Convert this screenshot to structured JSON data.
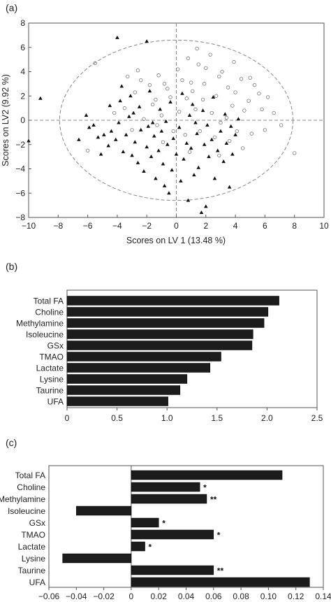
{
  "chart_data": [
    {
      "panel": "(a)",
      "type": "scatter",
      "xlabel": "Scores on LV 1 (13.48 %)",
      "ylabel": "Scores on LV2 (9.92 %)",
      "xlim": [
        -10,
        10
      ],
      "ylim": [
        -8,
        8
      ],
      "xticks": [
        -10,
        -8,
        -6,
        -4,
        -2,
        0,
        2,
        4,
        6,
        8,
        10
      ],
      "yticks": [
        8,
        6,
        4,
        2,
        0,
        -2,
        -4,
        -6,
        -8
      ],
      "ellipse": {
        "center": [
          0,
          0
        ],
        "rx": 7.9,
        "ry": 6.6,
        "style": "dashed"
      },
      "reference_lines": {
        "x": 0,
        "y": 0,
        "style": "dashed"
      },
      "series": [
        {
          "marker": "triangle-filled",
          "points": [
            [
              -9.2,
              1.8
            ],
            [
              -10,
              -1.7
            ],
            [
              -4.0,
              6.8
            ],
            [
              -3.7,
              2.8
            ],
            [
              -2.0,
              6.5
            ],
            [
              -6.1,
              0.4
            ],
            [
              -5.9,
              -0.6
            ],
            [
              -5.6,
              -0.4
            ],
            [
              -5.3,
              -1.4
            ],
            [
              -4.9,
              -1.2
            ],
            [
              -4.6,
              -2.1
            ],
            [
              -4.4,
              -0.9
            ],
            [
              -4.1,
              -1.6
            ],
            [
              -3.9,
              -0.2
            ],
            [
              -3.6,
              -2.6
            ],
            [
              -3.4,
              -1.2
            ],
            [
              -3.2,
              0.3
            ],
            [
              -3.0,
              -2.9
            ],
            [
              -2.8,
              -1.8
            ],
            [
              -2.6,
              -3.5
            ],
            [
              -2.4,
              -0.8
            ],
            [
              -2.2,
              -4.2
            ],
            [
              -2.0,
              -2.2
            ],
            [
              -1.9,
              -0.5
            ],
            [
              -1.7,
              -3.0
            ],
            [
              -1.5,
              -1.3
            ],
            [
              -1.4,
              -4.8
            ],
            [
              -1.2,
              -2.5
            ],
            [
              -1.0,
              -0.9
            ],
            [
              -0.9,
              -3.6
            ],
            [
              -0.8,
              -5.4
            ],
            [
              -0.6,
              -2.0
            ],
            [
              -0.5,
              -6.0
            ],
            [
              -0.3,
              -4.1
            ],
            [
              -0.2,
              -1.5
            ],
            [
              0.0,
              -2.8
            ],
            [
              0.2,
              -0.6
            ],
            [
              0.3,
              -5.0
            ],
            [
              0.5,
              -3.2
            ],
            [
              0.7,
              -1.9
            ],
            [
              0.8,
              -6.6
            ],
            [
              1.0,
              -2.3
            ],
            [
              1.2,
              -4.5
            ],
            [
              1.4,
              -1.1
            ],
            [
              1.5,
              -3.9
            ],
            [
              1.7,
              -7.6
            ],
            [
              1.9,
              -2.0
            ],
            [
              2.0,
              -7.1
            ],
            [
              2.2,
              -3.0
            ],
            [
              2.4,
              -1.6
            ],
            [
              2.6,
              -4.8
            ],
            [
              2.8,
              -2.5
            ],
            [
              3.0,
              -0.9
            ],
            [
              3.2,
              -3.4
            ],
            [
              3.4,
              -1.9
            ],
            [
              3.6,
              -5.5
            ],
            [
              3.8,
              -2.8
            ],
            [
              4.0,
              -1.2
            ],
            [
              -4.5,
              1.2
            ],
            [
              -3.8,
              1.6
            ],
            [
              -3.1,
              2.0
            ],
            [
              -2.5,
              1.1
            ],
            [
              -1.8,
              2.4
            ],
            [
              -1.1,
              0.9
            ],
            [
              -0.4,
              1.5
            ],
            [
              0.4,
              2.2
            ],
            [
              1.1,
              1.3
            ],
            [
              1.8,
              0.8
            ],
            [
              2.5,
              1.9
            ],
            [
              3.3,
              0.5
            ],
            [
              4.2,
              0.1
            ],
            [
              -2.9,
              0.6
            ],
            [
              -1.6,
              -0.2
            ],
            [
              0.9,
              0.4
            ],
            [
              2.1,
              -0.4
            ],
            [
              3.7,
              -0.5
            ],
            [
              -6.6,
              -1.6
            ],
            [
              -5.1,
              -2.8
            ],
            [
              -0.7,
              -0.1
            ],
            [
              1.3,
              -0.2
            ]
          ]
        },
        {
          "marker": "circle-open",
          "points": [
            [
              -5.5,
              4.7
            ],
            [
              -6.0,
              -2.5
            ],
            [
              -3.3,
              3.6
            ],
            [
              -2.6,
              4.1
            ],
            [
              -1.8,
              2.9
            ],
            [
              -1.2,
              3.7
            ],
            [
              -0.6,
              2.6
            ],
            [
              0.1,
              4.2
            ],
            [
              0.4,
              3.3
            ],
            [
              0.8,
              5.1
            ],
            [
              1.1,
              2.4
            ],
            [
              1.5,
              4.6
            ],
            [
              1.9,
              3.0
            ],
            [
              2.3,
              5.4
            ],
            [
              2.7,
              2.0
            ],
            [
              3.1,
              4.0
            ],
            [
              3.5,
              2.7
            ],
            [
              3.9,
              4.8
            ],
            [
              4.4,
              3.4
            ],
            [
              4.9,
              1.6
            ],
            [
              5.3,
              2.9
            ],
            [
              5.8,
              0.9
            ],
            [
              6.2,
              1.9
            ],
            [
              6.6,
              0.6
            ],
            [
              7.1,
              -0.4
            ],
            [
              8.0,
              -2.7
            ],
            [
              4.1,
              -0.9
            ],
            [
              3.6,
              -1.7
            ],
            [
              3.0,
              -0.2
            ],
            [
              2.4,
              0.6
            ],
            [
              1.8,
              1.7
            ],
            [
              1.3,
              0.9
            ],
            [
              0.7,
              1.8
            ],
            [
              0.2,
              0.7
            ],
            [
              -0.4,
              1.9
            ],
            [
              -1.0,
              0.4
            ],
            [
              -1.6,
              1.3
            ],
            [
              -2.2,
              0.1
            ],
            [
              -2.8,
              2.3
            ],
            [
              -3.5,
              1.0
            ],
            [
              -4.2,
              0.6
            ],
            [
              -1.3,
              -0.4
            ],
            [
              -0.2,
              -0.9
            ],
            [
              0.6,
              -1.2
            ],
            [
              1.6,
              -0.9
            ],
            [
              2.6,
              -1.4
            ],
            [
              4.5,
              -2.3
            ],
            [
              5.1,
              -1.1
            ],
            [
              5.6,
              2.2
            ],
            [
              4.6,
              0.8
            ],
            [
              3.8,
              1.2
            ],
            [
              2.9,
              3.6
            ],
            [
              2.0,
              4.3
            ],
            [
              1.0,
              3.1
            ],
            [
              -0.8,
              3.0
            ],
            [
              -2.4,
              3.3
            ],
            [
              -3.0,
              -0.8
            ],
            [
              -0.9,
              -1.8
            ],
            [
              0.9,
              -2.6
            ],
            [
              2.9,
              -2.9
            ],
            [
              3.4,
              0.2
            ],
            [
              4.0,
              2.3
            ],
            [
              5.0,
              3.5
            ],
            [
              1.4,
              5.9
            ],
            [
              -1.4,
              1.7
            ],
            [
              6.0,
              -0.8
            ]
          ]
        }
      ]
    },
    {
      "panel": "(b)",
      "type": "bar",
      "orientation": "horizontal",
      "categories": [
        "Total FA",
        "Choline",
        "Methylamine",
        "Isoleucine",
        "GSx",
        "TMAO",
        "Lactate",
        "Lysine",
        "Taurine",
        "UFA"
      ],
      "values": [
        2.12,
        2.01,
        1.97,
        1.86,
        1.85,
        1.54,
        1.43,
        1.2,
        1.13,
        1.01
      ],
      "xlim": [
        0,
        2.5
      ],
      "xticks": [
        "0",
        "0.5",
        "1.0",
        "1.5",
        "2.0",
        "2.5"
      ],
      "xlabel": "",
      "ylabel": ""
    },
    {
      "panel": "(c)",
      "type": "bar",
      "orientation": "horizontal",
      "categories": [
        "Total FA",
        "Choline",
        "Methylamine",
        "Isoleucine",
        "GSx",
        "TMAO",
        "Lactate",
        "Lysine",
        "Taurine",
        "UFA"
      ],
      "values": [
        0.11,
        0.05,
        0.055,
        -0.04,
        0.02,
        0.06,
        0.01,
        -0.05,
        0.06,
        0.13
      ],
      "annotations": [
        "",
        "*",
        "**",
        "",
        "*",
        "*",
        "*",
        "",
        "**",
        ""
      ],
      "xlim": [
        -0.06,
        0.14
      ],
      "xticks": [
        "−0.06",
        "−0.04",
        "−0.02",
        "0",
        "0.02",
        "0.04",
        "0.06",
        "0.08",
        "0.10",
        "0.12",
        "0.14"
      ],
      "xlabel": "",
      "ylabel": ""
    }
  ]
}
